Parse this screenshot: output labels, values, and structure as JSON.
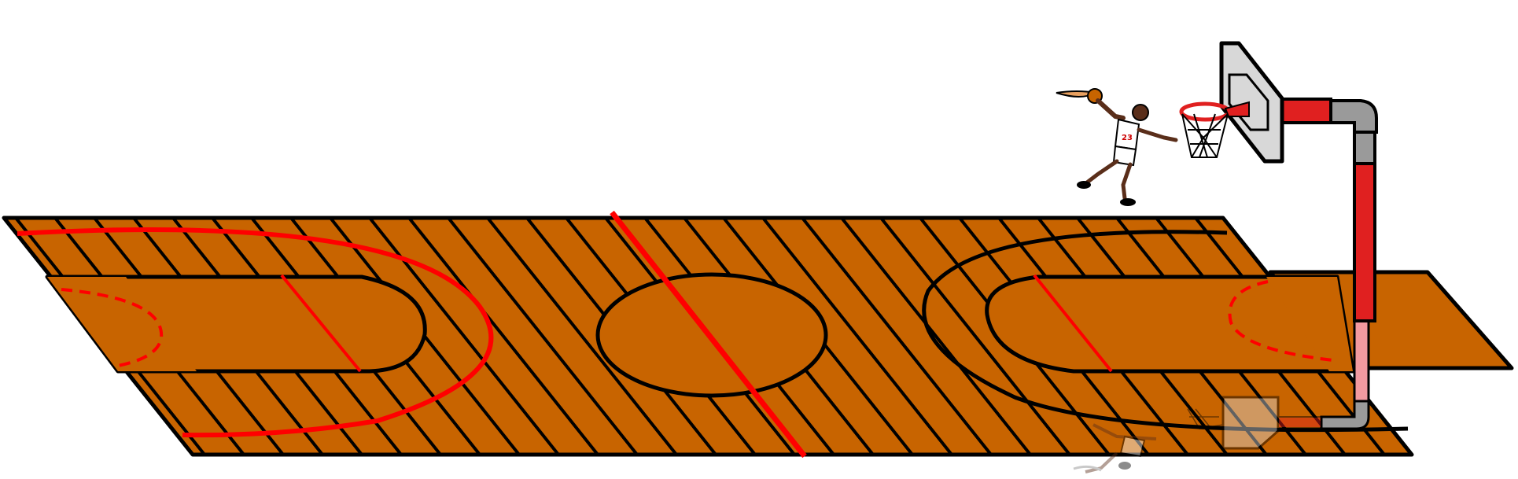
{
  "scene": {
    "subject": "basketball-court-dunk-illustration",
    "colors": {
      "background": "#ffffff",
      "court": "#c86400",
      "outline": "#000000",
      "court_line": "#ff0000",
      "hoop_red": "#e02020",
      "pole_gray": "#9a9a9a",
      "glass": "#d8d8d8",
      "player_skin": "#5a2e1a",
      "jersey": "#ffffff",
      "reflection_pole": "#f29aa0"
    },
    "player_jersey_number": "23"
  }
}
